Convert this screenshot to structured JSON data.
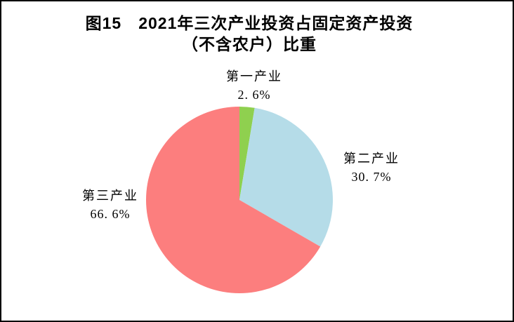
{
  "page": {
    "background": "#FFFFFF",
    "frame_color": "#000000"
  },
  "title": {
    "line1": "图15　2021年三次产业投资占固定资产投资",
    "line2": "（不含农户）比重"
  },
  "chart_data": {
    "type": "pie",
    "title": "图15 2021年三次产业投资占固定资产投资（不含农户）比重",
    "categories": [
      "第一产业",
      "第二产业",
      "第三产业"
    ],
    "values": [
      2.6,
      30.7,
      66.6
    ],
    "unit": "%",
    "colors": [
      "#8FD04F",
      "#B5DCE8",
      "#FC7E7E"
    ],
    "start_angle_deg": 0,
    "direction": "clockwise",
    "legend": "none",
    "labels": [
      {
        "category": "第一产业",
        "value_text": "2. 6%"
      },
      {
        "category": "第二产业",
        "value_text": "30. 7%"
      },
      {
        "category": "第三产业",
        "value_text": "66. 6%"
      }
    ]
  }
}
